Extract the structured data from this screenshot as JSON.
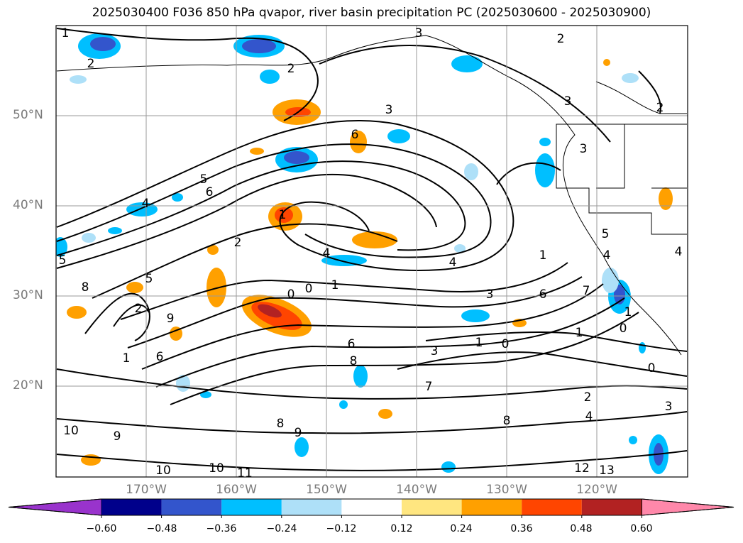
{
  "title": "2025030400 F036 850 hPa qvapor, river basin precipitation PC (2025030600 - 2025030900)",
  "lat_labels": [
    "50°N",
    "40°N",
    "30°N",
    "20°N"
  ],
  "lon_labels": [
    "170°W",
    "160°W",
    "150°W",
    "140°W",
    "130°W",
    "120°W"
  ],
  "contour_labels": [
    "1",
    "2",
    "3",
    "6",
    "5",
    "6",
    "4",
    "1",
    "2",
    "4",
    "8",
    "2",
    "5",
    "1",
    "9",
    "0",
    "0",
    "1",
    "3",
    "6",
    "8",
    "3",
    "1",
    "0",
    "6",
    "1",
    "7",
    "8",
    "8",
    "9",
    "10",
    "9",
    "10",
    "10",
    "11",
    "12",
    "13",
    "2",
    "4",
    "1",
    "3",
    "0",
    "5",
    "4",
    "2",
    "3",
    "2",
    "2",
    "3",
    "3",
    "5",
    "4",
    "7",
    "1",
    "0",
    "6",
    "4"
  ],
  "colorbar": {
    "tick_labels": [
      "−0.60",
      "−0.48",
      "−0.36",
      "−0.24",
      "−0.12",
      "0.12",
      "0.24",
      "0.36",
      "0.48",
      "0.60"
    ],
    "colors": [
      "#9933cc",
      "#00008b",
      "#3355cc",
      "#00bfff",
      "#aee0f8",
      "#ffffff",
      "#ffe680",
      "#ffa000",
      "#ff4500",
      "#b22222",
      "#ff88aa"
    ]
  }
}
